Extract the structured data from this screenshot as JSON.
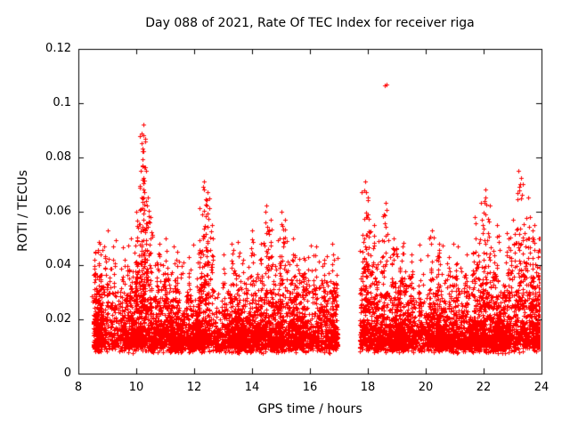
{
  "chart_data": {
    "type": "scatter",
    "title": "Day 088 of 2021, Rate Of TEC Index for receiver riga",
    "xlabel": "GPS time / hours",
    "ylabel": "ROTI / TECUs",
    "xlim": [
      8,
      24
    ],
    "ylim": [
      0,
      0.12
    ],
    "xticks": [
      {
        "v": 8,
        "label": "8"
      },
      {
        "v": 10,
        "label": "10"
      },
      {
        "v": 12,
        "label": "12"
      },
      {
        "v": 14,
        "label": "14"
      },
      {
        "v": 16,
        "label": "16"
      },
      {
        "v": 18,
        "label": "18"
      },
      {
        "v": 20,
        "label": "20"
      },
      {
        "v": 22,
        "label": "22"
      },
      {
        "v": 24,
        "label": "24"
      }
    ],
    "yticks": [
      {
        "v": 0,
        "label": "0"
      },
      {
        "v": 0.02,
        "label": "0.02"
      },
      {
        "v": 0.04,
        "label": "0.04"
      },
      {
        "v": 0.06,
        "label": "0.06"
      },
      {
        "v": 0.08,
        "label": "0.08"
      },
      {
        "v": 0.1,
        "label": "0.1"
      },
      {
        "v": 0.12,
        "label": "0.12"
      }
    ],
    "grid": false,
    "legend": "none",
    "marker": {
      "shape": "plus",
      "color": "#ff0000"
    },
    "series": [
      {
        "name": "ROTI",
        "coverage_x": [
          8.52,
          24.0
        ],
        "data_gap_x": [
          16.95,
          17.72
        ],
        "baseline_band_y": [
          0.008,
          0.04
        ],
        "typical_value": 0.021,
        "peaks": [
          {
            "x": 8.6,
            "y": 0.045
          },
          {
            "x": 8.75,
            "y": 0.048
          },
          {
            "x": 9.0,
            "y": 0.053
          },
          {
            "x": 9.2,
            "y": 0.047
          },
          {
            "x": 9.6,
            "y": 0.042
          },
          {
            "x": 10.0,
            "y": 0.06
          },
          {
            "x": 10.2,
            "y": 0.085
          },
          {
            "x": 10.25,
            "y": 0.092
          },
          {
            "x": 10.35,
            "y": 0.075
          },
          {
            "x": 10.5,
            "y": 0.058
          },
          {
            "x": 10.8,
            "y": 0.048
          },
          {
            "x": 11.0,
            "y": 0.05
          },
          {
            "x": 11.4,
            "y": 0.045
          },
          {
            "x": 11.8,
            "y": 0.043
          },
          {
            "x": 12.2,
            "y": 0.061
          },
          {
            "x": 12.35,
            "y": 0.071
          },
          {
            "x": 12.45,
            "y": 0.067
          },
          {
            "x": 12.6,
            "y": 0.055
          },
          {
            "x": 13.0,
            "y": 0.044
          },
          {
            "x": 13.3,
            "y": 0.048
          },
          {
            "x": 13.7,
            "y": 0.042
          },
          {
            "x": 14.0,
            "y": 0.053
          },
          {
            "x": 14.3,
            "y": 0.048
          },
          {
            "x": 14.5,
            "y": 0.062
          },
          {
            "x": 14.65,
            "y": 0.057
          },
          {
            "x": 15.0,
            "y": 0.06
          },
          {
            "x": 15.15,
            "y": 0.057
          },
          {
            "x": 15.4,
            "y": 0.05
          },
          {
            "x": 15.8,
            "y": 0.042
          },
          {
            "x": 16.2,
            "y": 0.047
          },
          {
            "x": 16.5,
            "y": 0.042
          },
          {
            "x": 16.8,
            "y": 0.044
          },
          {
            "x": 17.9,
            "y": 0.071
          },
          {
            "x": 18.0,
            "y": 0.064
          },
          {
            "x": 18.2,
            "y": 0.055
          },
          {
            "x": 18.6,
            "y": 0.063
          },
          {
            "x": 18.9,
            "y": 0.05
          },
          {
            "x": 19.2,
            "y": 0.047
          },
          {
            "x": 19.5,
            "y": 0.044
          },
          {
            "x": 19.8,
            "y": 0.042
          },
          {
            "x": 20.2,
            "y": 0.053
          },
          {
            "x": 20.45,
            "y": 0.048
          },
          {
            "x": 20.8,
            "y": 0.043
          },
          {
            "x": 21.1,
            "y": 0.047
          },
          {
            "x": 21.4,
            "y": 0.044
          },
          {
            "x": 21.7,
            "y": 0.058
          },
          {
            "x": 21.9,
            "y": 0.063
          },
          {
            "x": 22.05,
            "y": 0.068
          },
          {
            "x": 22.2,
            "y": 0.062
          },
          {
            "x": 22.45,
            "y": 0.055
          },
          {
            "x": 22.8,
            "y": 0.052
          },
          {
            "x": 23.0,
            "y": 0.057
          },
          {
            "x": 23.2,
            "y": 0.075
          },
          {
            "x": 23.35,
            "y": 0.07
          },
          {
            "x": 23.55,
            "y": 0.065
          },
          {
            "x": 23.75,
            "y": 0.055
          },
          {
            "x": 23.95,
            "y": 0.05
          },
          {
            "x": 24.0,
            "y": 0.045
          }
        ],
        "isolated_points": [
          {
            "x": 18.57,
            "y": 0.1065
          },
          {
            "x": 18.64,
            "y": 0.107
          }
        ]
      }
    ]
  }
}
